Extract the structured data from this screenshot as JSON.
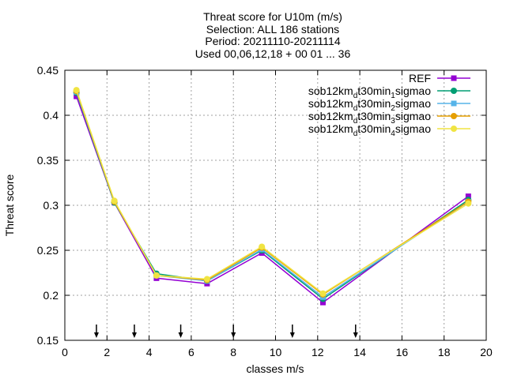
{
  "chart_data": {
    "type": "line",
    "title_lines": [
      "Threat score  for U10m (m/s)",
      "Selection: ALL    186 stations",
      "Period: 20211110-20211114",
      "Used 00,06,12,18 + 00 01 ... 36"
    ],
    "xlabel": "classes m/s",
    "ylabel": "Threat score",
    "xlim": [
      0,
      20
    ],
    "ylim": [
      0.15,
      0.45
    ],
    "xticks": [
      0,
      2,
      4,
      6,
      8,
      10,
      12,
      14,
      16,
      18,
      20
    ],
    "yticks": [
      0.15,
      0.2,
      0.25,
      0.3,
      0.35,
      0.4,
      0.45
    ],
    "grid": true,
    "legend_position": "top-right",
    "class_limit_arrows_x": [
      1.5,
      3.3,
      5.5,
      8.0,
      10.8,
      13.8
    ],
    "series": [
      {
        "name": "REF",
        "legend": {
          "prefix": "REF"
        },
        "color": "#9400d3",
        "marker": "square",
        "x": [
          0.55,
          2.35,
          4.35,
          6.75,
          9.35,
          12.25,
          19.15
        ],
        "y": [
          0.421,
          0.303,
          0.219,
          0.213,
          0.247,
          0.192,
          0.31
        ]
      },
      {
        "name": "sob12km_dt30min_1sigmao",
        "legend": {
          "prefix": "sob12km",
          "sub1": "d",
          "mid": "t30min",
          "sub2": "1",
          "suffix": "sigmao"
        },
        "color": "#009e73",
        "marker": "circle",
        "x": [
          0.55,
          2.35,
          4.35,
          6.75,
          9.35,
          12.25,
          19.15
        ],
        "y": [
          0.425,
          0.303,
          0.224,
          0.216,
          0.25,
          0.196,
          0.306
        ]
      },
      {
        "name": "sob12km_dt30min_2sigmao",
        "legend": {
          "prefix": "sob12km",
          "sub1": "d",
          "mid": "t30min",
          "sub2": "2",
          "suffix": "sigmao"
        },
        "color": "#56b4e9",
        "marker": "square",
        "x": [
          0.55,
          2.35,
          4.35,
          6.75,
          9.35,
          12.25,
          19.15
        ],
        "y": [
          0.426,
          0.304,
          0.222,
          0.216,
          0.251,
          0.198,
          0.304
        ]
      },
      {
        "name": "sob12km_dt30min_3sigmao",
        "legend": {
          "prefix": "sob12km",
          "sub1": "d",
          "mid": "t30min",
          "sub2": "3",
          "suffix": "sigmao"
        },
        "color": "#e69f00",
        "marker": "circle",
        "x": [
          0.55,
          2.35,
          4.35,
          6.75,
          9.35,
          12.25,
          19.15
        ],
        "y": [
          0.427,
          0.304,
          0.222,
          0.217,
          0.253,
          0.201,
          0.304
        ]
      },
      {
        "name": "sob12km_dt30min_4sigmao",
        "legend": {
          "prefix": "sob12km",
          "sub1": "d",
          "mid": "t30min",
          "sub2": "4",
          "suffix": "sigmao"
        },
        "color": "#f0e442",
        "marker": "circle",
        "x": [
          0.55,
          2.35,
          4.35,
          6.75,
          9.35,
          12.25,
          19.15
        ],
        "y": [
          0.428,
          0.305,
          0.222,
          0.218,
          0.254,
          0.202,
          0.302
        ]
      }
    ]
  }
}
